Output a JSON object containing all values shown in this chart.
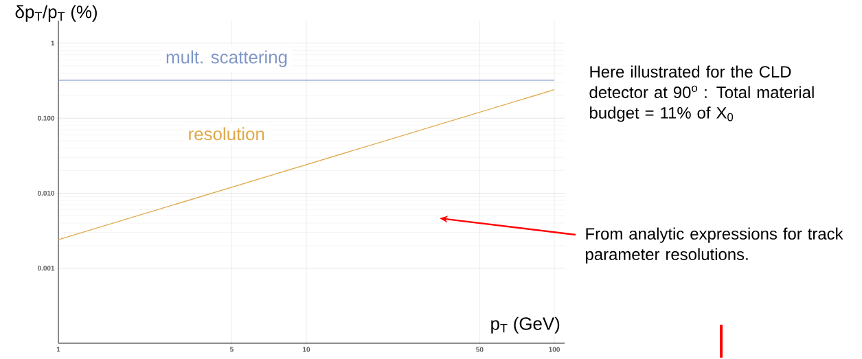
{
  "chart_data": {
    "type": "line",
    "ylabel": "δp$_{T}$/p$_{T}$  (%)",
    "xlabel": "p$_{T}$ (GeV)",
    "x": [
      1,
      100
    ],
    "series": [
      {
        "name": "mult. scattering",
        "color": "#7f97c8",
        "values": [
          0.32,
          0.32
        ]
      },
      {
        "name": "resolution",
        "color": "#e0a84a",
        "values": [
          0.0024,
          0.24
        ]
      }
    ],
    "log": "xy",
    "xlim": [
      1,
      110
    ],
    "ylim": [
      0.0001,
      2
    ],
    "xticks": [
      1,
      5,
      10,
      50,
      100
    ],
    "yticks": [
      {
        "value": 0.001,
        "label": "0.001"
      },
      {
        "value": 0.01,
        "label": "0.010"
      },
      {
        "value": 0.1,
        "label": "0.100"
      },
      {
        "value": 1,
        "label": "1"
      }
    ],
    "grid": true,
    "marker": "none",
    "line_style": "solid",
    "annotations": [
      "Here illustrated for the CLD detector at 90$^{o}$ : Total material budget = 11% of X$_{0}$",
      "From analytic expressions for track parameter resolutions."
    ]
  }
}
